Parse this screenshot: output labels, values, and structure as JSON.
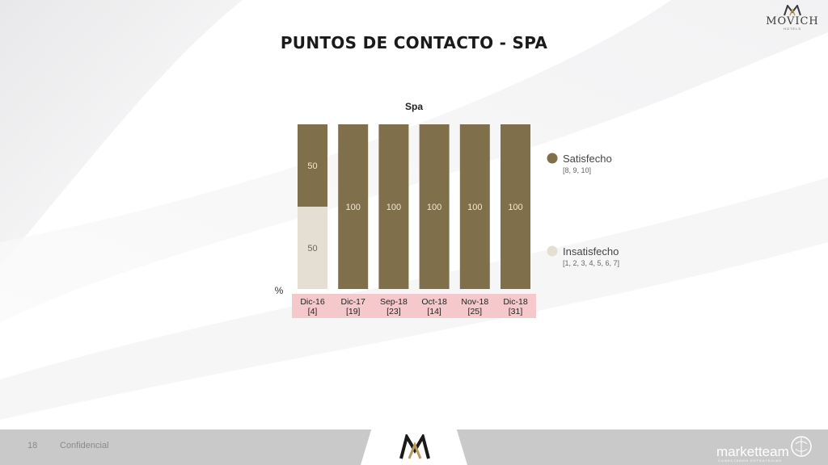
{
  "header": {
    "title": "PUNTOS DE CONTACTO - SPA",
    "logo_brand": "MOVICH",
    "logo_sub": "HOTELS"
  },
  "footer": {
    "page_number": "18",
    "confidential": "Confidencial",
    "brand": "marketteam",
    "brand_sub": "CONECTANDO ESTRATEGIAS"
  },
  "colors": {
    "satisfied": "#7f6f4a",
    "unsatisfied": "#e5dfd3",
    "category_bg": "#f5c9cb",
    "footer": "#c9c9c9"
  },
  "chart_data": {
    "type": "bar",
    "stacked": true,
    "title": "Spa",
    "ylabel": "%",
    "ylim": [
      0,
      100
    ],
    "grid": false,
    "legend_position": "right",
    "categories": [
      "Dic-16",
      "Dic-17",
      "Sep-18",
      "Oct-18",
      "Nov-18",
      "Dic-18"
    ],
    "category_counts": [
      "[4]",
      "[19]",
      "[23]",
      "[14]",
      "[25]",
      "[31]"
    ],
    "series": [
      {
        "name": "Insatisfecho",
        "note": "[1, 2, 3, 4, 5, 6, 7]",
        "color": "#e5dfd3",
        "values": [
          50,
          0,
          0,
          0,
          0,
          0
        ]
      },
      {
        "name": "Satisfecho",
        "note": "[8, 9, 10]",
        "color": "#7f6f4a",
        "values": [
          50,
          100,
          100,
          100,
          100,
          100
        ]
      }
    ]
  }
}
